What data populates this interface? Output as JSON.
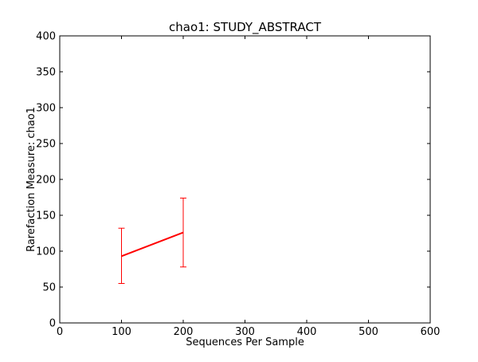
{
  "chart_data": {
    "type": "line",
    "title": "chao1: STUDY_ABSTRACT",
    "xlabel": "Sequences Per Sample",
    "ylabel": "Rarefaction Measure: chao1",
    "xlim": [
      0,
      600
    ],
    "ylim": [
      0,
      400
    ],
    "xticks": [
      0,
      100,
      200,
      300,
      400,
      500,
      600
    ],
    "yticks": [
      0,
      50,
      100,
      150,
      200,
      250,
      300,
      350,
      400
    ],
    "grid": false,
    "series": [
      {
        "color": "#ff0000",
        "x": [
          100,
          200
        ],
        "y": [
          93,
          126
        ],
        "error_low": [
          55,
          78
        ],
        "error_high": [
          132,
          174
        ]
      }
    ]
  }
}
